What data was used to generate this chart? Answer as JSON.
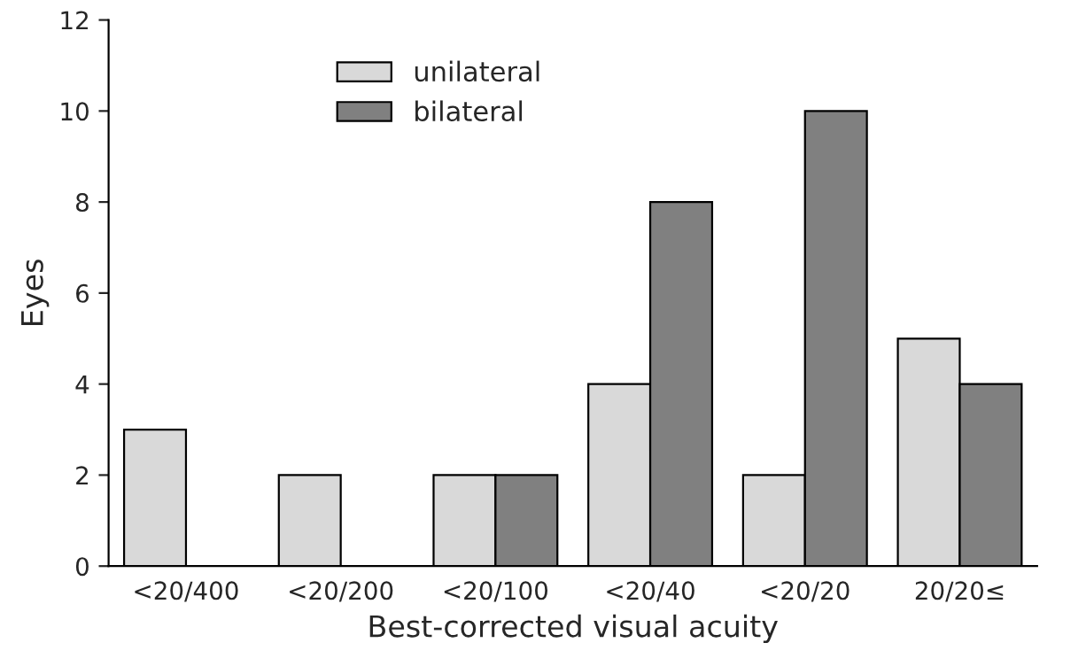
{
  "chart_data": {
    "type": "bar",
    "xlabel": "Best-corrected visual acuity",
    "ylabel": "Eyes",
    "categories": [
      "<20/400",
      "<20/200",
      "<20/100",
      "<20/40",
      "<20/20",
      "20/20≤"
    ],
    "series": [
      {
        "name": "unilateral",
        "color": "#d9d9d9",
        "values": [
          3,
          2,
          2,
          4,
          2,
          5
        ]
      },
      {
        "name": "bilateral",
        "color": "#808080",
        "values": [
          0,
          0,
          2,
          8,
          10,
          4
        ]
      }
    ],
    "ylim": [
      0,
      12
    ],
    "yticks": [
      0,
      2,
      4,
      6,
      8,
      10,
      12
    ],
    "grid": false,
    "legend": "top left"
  }
}
